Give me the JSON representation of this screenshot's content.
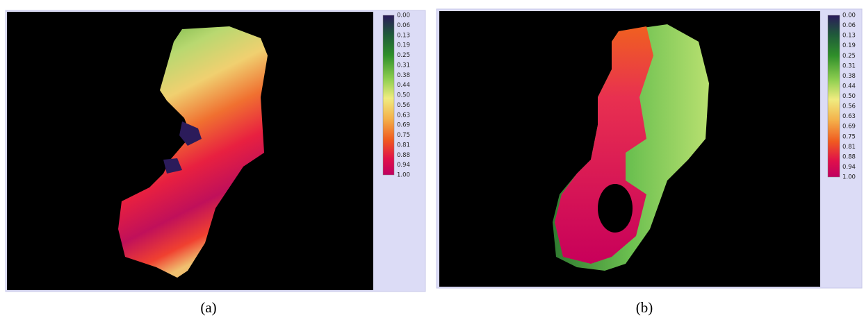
{
  "panels": [
    {
      "caption": "(a)",
      "legend_labels": [
        "0.00",
        "0.06",
        "0.13",
        "0.19",
        "0.25",
        "0.31",
        "0.38",
        "0.44",
        "0.50",
        "0.56",
        "0.63",
        "0.69",
        "0.75",
        "0.81",
        "0.88",
        "0.94",
        "1.00"
      ]
    },
    {
      "caption": "(b)",
      "legend_labels": [
        "0.00",
        "0.06",
        "0.13",
        "0.19",
        "0.25",
        "0.31",
        "0.38",
        "0.44",
        "0.50",
        "0.56",
        "0.63",
        "0.69",
        "0.75",
        "0.81",
        "0.88",
        "0.94",
        "1.00"
      ]
    }
  ]
}
